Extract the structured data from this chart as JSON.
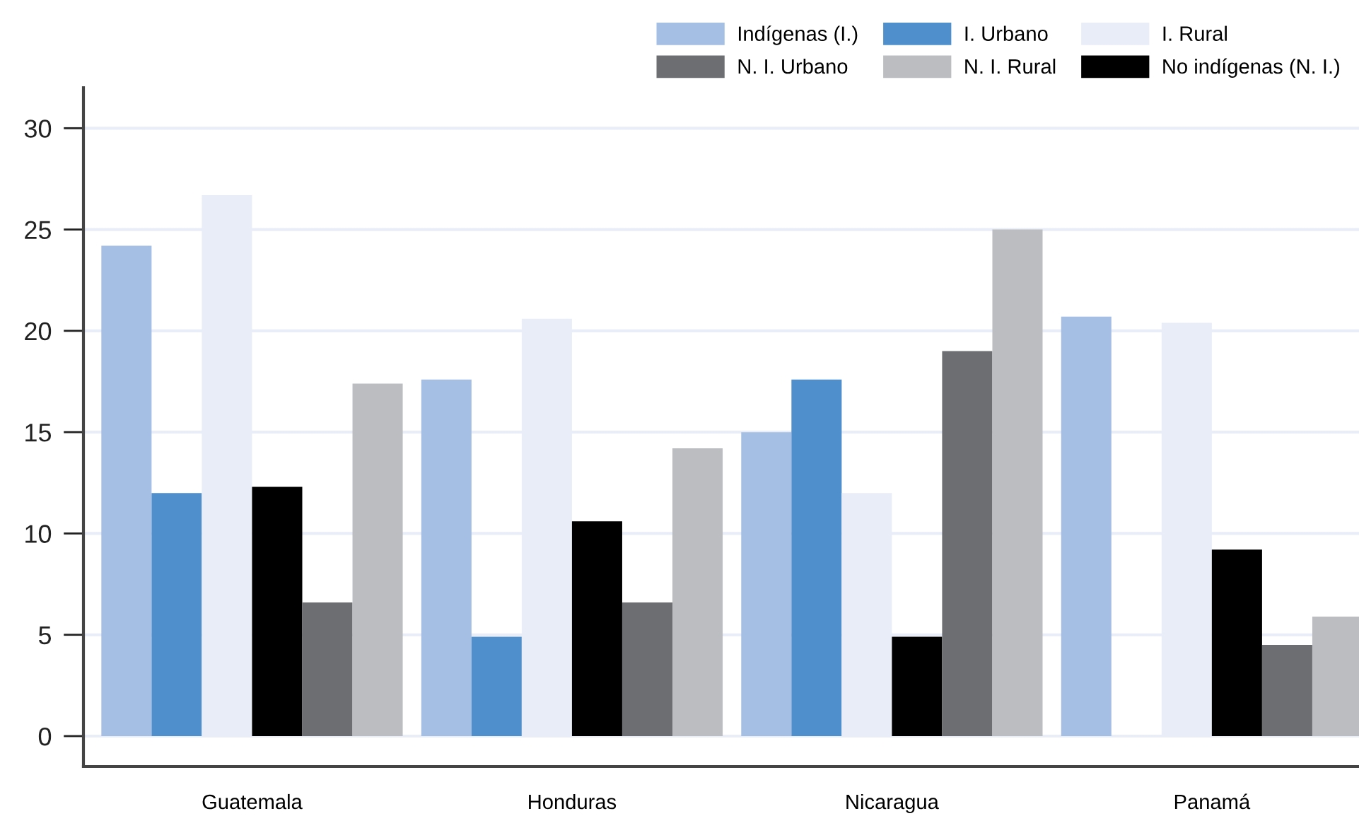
{
  "chart_data": {
    "type": "bar",
    "categories": [
      "Guatemala",
      "Honduras",
      "Nicaragua",
      "Panamá"
    ],
    "series": [
      {
        "name": "Indígenas (I.)",
        "color": "#a4bfe3",
        "values": [
          24.2,
          17.6,
          15.0,
          20.7
        ]
      },
      {
        "name": "I. Urbano",
        "color": "#4f8fcb",
        "values": [
          12.0,
          4.9,
          17.6,
          null
        ]
      },
      {
        "name": "I. Rural",
        "color": "#e8edf8",
        "values": [
          26.7,
          20.6,
          12.0,
          20.4
        ]
      },
      {
        "name": "No indígenas (N. I.)",
        "color": "#000000",
        "values": [
          12.3,
          10.6,
          4.9,
          9.2
        ]
      },
      {
        "name": "N. I. Urbano",
        "color": "#6d6e71",
        "values": [
          6.6,
          6.6,
          19.0,
          4.5
        ]
      },
      {
        "name": "N. I. Rural",
        "color": "#bcbdc0",
        "values": [
          17.4,
          14.2,
          25.0,
          5.9
        ]
      }
    ],
    "ylim": [
      -1.5,
      32
    ],
    "yticks": [
      0,
      5,
      10,
      15,
      20,
      25,
      30
    ],
    "grid": "y",
    "legend": "top right"
  }
}
